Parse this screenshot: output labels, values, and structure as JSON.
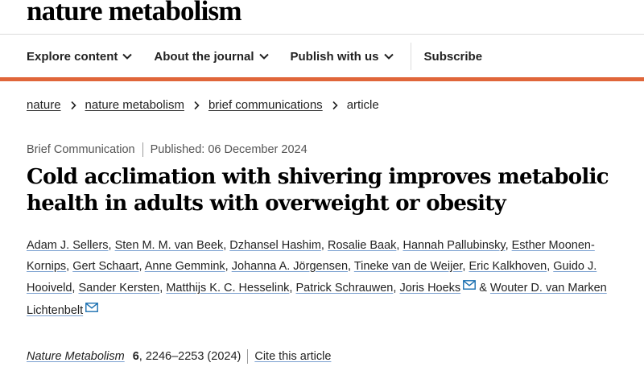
{
  "header": {
    "logo": "nature metabolism",
    "nav": [
      {
        "label": "Explore content",
        "icon": "chevron-down-icon"
      },
      {
        "label": "About the journal",
        "icon": "chevron-down-icon"
      },
      {
        "label": "Publish with us",
        "icon": "chevron-down-icon"
      }
    ],
    "subscribe": "Subscribe",
    "accent_color": "#e0663a"
  },
  "breadcrumb": {
    "items": [
      "nature",
      "nature metabolism",
      "brief communications"
    ],
    "current": "article"
  },
  "article": {
    "type": "Brief Communication",
    "published": "Published: 06 December 2024",
    "title": "Cold acclimation with shivering improves metabolic health in adults with overweight or obesity",
    "authors": [
      "Adam J. Sellers",
      "Sten M. M. van Beek",
      "Dzhansel Hashim",
      "Rosalie Baak",
      "Hannah Pallubinsky",
      "Esther Moonen-Kornips",
      "Gert Schaart",
      "Anne Gemmink",
      "Johanna A. Jörgensen",
      "Tineke van de Weijer",
      "Eric Kalkhoven",
      "Guido J. Hooiveld",
      "Sander Kersten",
      "Matthijs K. C. Hesselink",
      "Patrick Schrauwen",
      "Joris Hoeks",
      "Wouter D. van Marken Lichtenbelt"
    ],
    "author_separator": ", ",
    "last_separator": " & ",
    "citation": {
      "journal": "Nature Metabolism",
      "volume": "6",
      "pages": ", 2246–2253 (2024)",
      "cite_label": "Cite this article"
    }
  }
}
